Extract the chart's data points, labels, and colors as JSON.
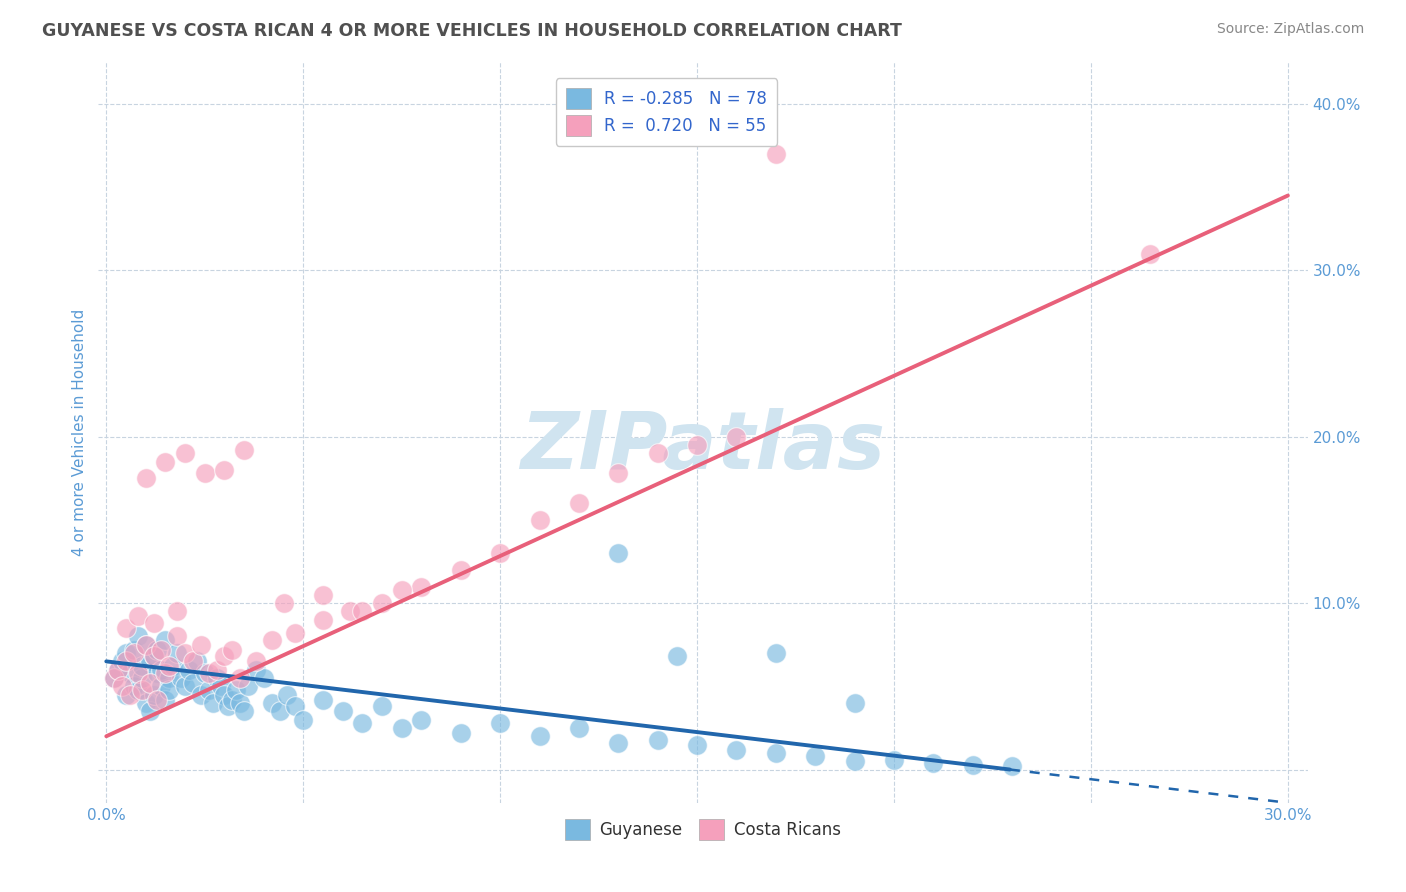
{
  "title": "GUYANESE VS COSTA RICAN 4 OR MORE VEHICLES IN HOUSEHOLD CORRELATION CHART",
  "source": "Source: ZipAtlas.com",
  "xlabel": "",
  "ylabel": "4 or more Vehicles in Household",
  "xlim": [
    -0.002,
    0.305
  ],
  "ylim": [
    -0.02,
    0.425
  ],
  "xticks": [
    0.0,
    0.05,
    0.1,
    0.15,
    0.2,
    0.25,
    0.3
  ],
  "yticks": [
    0.0,
    0.1,
    0.2,
    0.3,
    0.4
  ],
  "xticklabels": [
    "0.0%",
    "",
    "",
    "",
    "",
    "",
    "30.0%"
  ],
  "yticklabels": [
    "",
    "10.0%",
    "20.0%",
    "30.0%",
    "40.0%"
  ],
  "color_guyanese": "#7ab9e0",
  "color_costarican": "#f5a0bc",
  "color_line_guyanese": "#2166ac",
  "color_line_costarican": "#e8607a",
  "watermark": "ZIPatlas",
  "watermark_color": "#d0e4f0",
  "background_color": "#ffffff",
  "grid_color": "#c8d4e0",
  "title_color": "#505050",
  "axis_label_color": "#5b9bd5",
  "tick_color": "#5b9bd5",
  "n_guyanese": 78,
  "n_costarican": 55,
  "r_guyanese": -0.285,
  "r_costarican": 0.72,
  "guyanese_x": [
    0.002,
    0.003,
    0.004,
    0.005,
    0.005,
    0.006,
    0.007,
    0.007,
    0.008,
    0.008,
    0.009,
    0.009,
    0.01,
    0.01,
    0.011,
    0.011,
    0.012,
    0.012,
    0.013,
    0.013,
    0.014,
    0.014,
    0.015,
    0.015,
    0.016,
    0.016,
    0.017,
    0.018,
    0.019,
    0.02,
    0.021,
    0.022,
    0.023,
    0.024,
    0.025,
    0.026,
    0.027,
    0.028,
    0.029,
    0.03,
    0.031,
    0.032,
    0.033,
    0.034,
    0.035,
    0.036,
    0.038,
    0.04,
    0.042,
    0.044,
    0.046,
    0.048,
    0.05,
    0.055,
    0.06,
    0.065,
    0.07,
    0.075,
    0.08,
    0.09,
    0.1,
    0.11,
    0.12,
    0.13,
    0.14,
    0.15,
    0.16,
    0.17,
    0.18,
    0.19,
    0.2,
    0.21,
    0.22,
    0.23,
    0.17,
    0.13,
    0.19,
    0.145
  ],
  "guyanese_y": [
    0.055,
    0.06,
    0.065,
    0.045,
    0.07,
    0.058,
    0.05,
    0.072,
    0.048,
    0.08,
    0.055,
    0.062,
    0.04,
    0.075,
    0.035,
    0.065,
    0.068,
    0.045,
    0.058,
    0.072,
    0.05,
    0.06,
    0.042,
    0.078,
    0.055,
    0.048,
    0.062,
    0.07,
    0.055,
    0.05,
    0.06,
    0.052,
    0.065,
    0.045,
    0.058,
    0.048,
    0.04,
    0.055,
    0.05,
    0.045,
    0.038,
    0.042,
    0.048,
    0.04,
    0.035,
    0.05,
    0.06,
    0.055,
    0.04,
    0.035,
    0.045,
    0.038,
    0.03,
    0.042,
    0.035,
    0.028,
    0.038,
    0.025,
    0.03,
    0.022,
    0.028,
    0.02,
    0.025,
    0.016,
    0.018,
    0.015,
    0.012,
    0.01,
    0.008,
    0.005,
    0.006,
    0.004,
    0.003,
    0.002,
    0.07,
    0.13,
    0.04,
    0.068
  ],
  "costarican_x": [
    0.002,
    0.003,
    0.004,
    0.005,
    0.006,
    0.007,
    0.008,
    0.009,
    0.01,
    0.011,
    0.012,
    0.013,
    0.014,
    0.015,
    0.016,
    0.018,
    0.02,
    0.022,
    0.024,
    0.026,
    0.028,
    0.03,
    0.032,
    0.034,
    0.038,
    0.042,
    0.048,
    0.055,
    0.062,
    0.07,
    0.08,
    0.09,
    0.1,
    0.11,
    0.12,
    0.13,
    0.14,
    0.15,
    0.16,
    0.17,
    0.01,
    0.015,
    0.02,
    0.025,
    0.03,
    0.035,
    0.005,
    0.008,
    0.012,
    0.018,
    0.045,
    0.055,
    0.065,
    0.075,
    0.265
  ],
  "costarican_y": [
    0.055,
    0.06,
    0.05,
    0.065,
    0.045,
    0.07,
    0.058,
    0.048,
    0.075,
    0.052,
    0.068,
    0.042,
    0.072,
    0.058,
    0.062,
    0.08,
    0.07,
    0.065,
    0.075,
    0.058,
    0.06,
    0.068,
    0.072,
    0.055,
    0.065,
    0.078,
    0.082,
    0.09,
    0.095,
    0.1,
    0.11,
    0.12,
    0.13,
    0.15,
    0.16,
    0.178,
    0.19,
    0.195,
    0.2,
    0.37,
    0.175,
    0.185,
    0.19,
    0.178,
    0.18,
    0.192,
    0.085,
    0.092,
    0.088,
    0.095,
    0.1,
    0.105,
    0.095,
    0.108,
    0.31
  ],
  "trend_g_x0": 0.0,
  "trend_g_y0": 0.065,
  "trend_g_x1": 0.3,
  "trend_g_y1": -0.02,
  "trend_cr_x0": 0.0,
  "trend_cr_y0": 0.02,
  "trend_cr_x1": 0.3,
  "trend_cr_y1": 0.345
}
